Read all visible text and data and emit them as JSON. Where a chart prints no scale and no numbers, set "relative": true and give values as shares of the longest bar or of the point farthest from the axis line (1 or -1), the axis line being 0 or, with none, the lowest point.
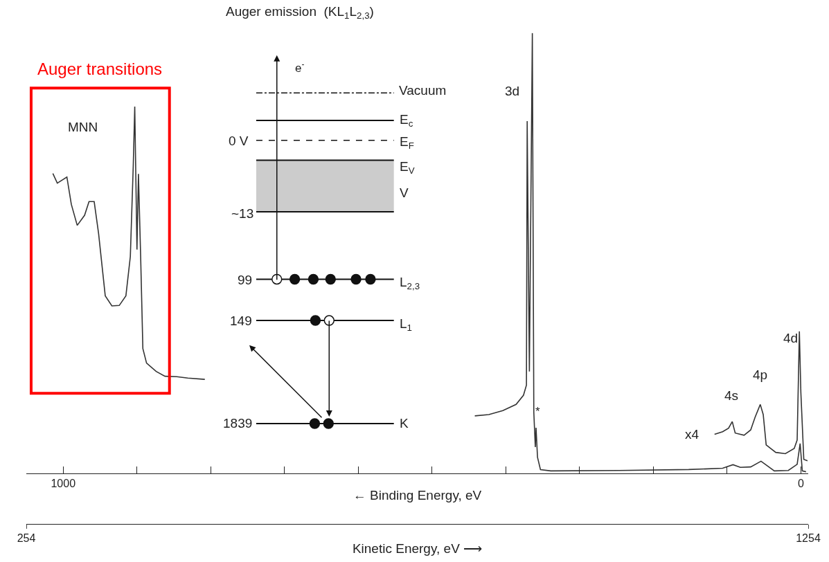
{
  "chart_data": {
    "type": "line",
    "relative": true,
    "xlabel": "← Binding Energy, eV",
    "x2label": "Kinetic Energy, eV ⟶",
    "xlim": [
      1050,
      -10
    ],
    "xticks": [
      1000,
      {
        "value": 900,
        "label": null
      },
      {
        "value": 800,
        "label": null
      },
      {
        "value": 700,
        "label": null
      },
      {
        "value": 600,
        "label": null
      },
      {
        "value": 500,
        "label": null
      },
      {
        "value": 400,
        "label": null
      },
      {
        "value": 300,
        "label": null
      },
      {
        "value": 200,
        "label": null
      },
      {
        "value": 100,
        "label": null
      },
      0
    ],
    "x2lim": [
      254,
      1254
    ],
    "x2ticks": [
      254,
      1254
    ],
    "marker": "none",
    "line_style": "solid",
    "series": [
      {
        "color": "#333333",
        "x": [
          442,
          423,
          404,
          386,
          376,
          372,
          371,
          368,
          364,
          362,
          360,
          359,
          357,
          353,
          339,
          246,
          152,
          106,
          92,
          82,
          68,
          54,
          45,
          36,
          17,
          5,
          1,
          -2,
          -7
        ],
        "values": [
          0.13,
          0.133,
          0.142,
          0.156,
          0.177,
          0.2,
          0.8,
          0.231,
          1.0,
          0.138,
          0.059,
          0.103,
          0.036,
          0.008,
          0.005,
          0.006,
          0.008,
          0.011,
          0.019,
          0.013,
          0.014,
          0.027,
          0.016,
          0.005,
          0.006,
          0.02,
          0.067,
          0.005,
          0.003
        ]
      },
      {
        "color": "#333333",
        "x": [
          117,
          106,
          98,
          93,
          89,
          77,
          68,
          62,
          55,
          51,
          47,
          34,
          21,
          9,
          5,
          2,
          0,
          -4,
          -9
        ],
        "values": [
          0.088,
          0.094,
          0.102,
          0.117,
          0.091,
          0.086,
          0.098,
          0.127,
          0.156,
          0.133,
          0.064,
          0.047,
          0.044,
          0.056,
          0.075,
          0.322,
          0.184,
          0.031,
          0.028
        ]
      },
      {
        "color": "#333333",
        "x": [
          1014,
          1008,
          995,
          989,
          981,
          971,
          965,
          958,
          952,
          943,
          934,
          924,
          915,
          909,
          905,
          903,
          900,
          898,
          895,
          892,
          887,
          874,
          862,
          846,
          831,
          808
        ],
        "values": [
          0.681,
          0.659,
          0.673,
          0.611,
          0.563,
          0.586,
          0.617,
          0.617,
          0.544,
          0.403,
          0.38,
          0.381,
          0.403,
          0.492,
          0.7,
          0.833,
          0.508,
          0.68,
          0.492,
          0.283,
          0.25,
          0.231,
          0.22,
          0.219,
          0.216,
          0.213
        ]
      }
    ],
    "annotations": [
      "Auger transitions",
      "MNN",
      "3d",
      "*",
      "x4",
      "4s",
      "4p",
      "4d",
      "Auger emission  (KL$_{1}$L$_{2,3}$)",
      "e$^{-}$",
      "Vacuum",
      "E$_{c}$",
      "0 V",
      "E$_{F}$",
      "E$_{V}$",
      "V",
      "~13",
      "99",
      "L$_{2,3}$",
      "149",
      "L$_{1}$",
      "1839",
      "K"
    ]
  }
}
